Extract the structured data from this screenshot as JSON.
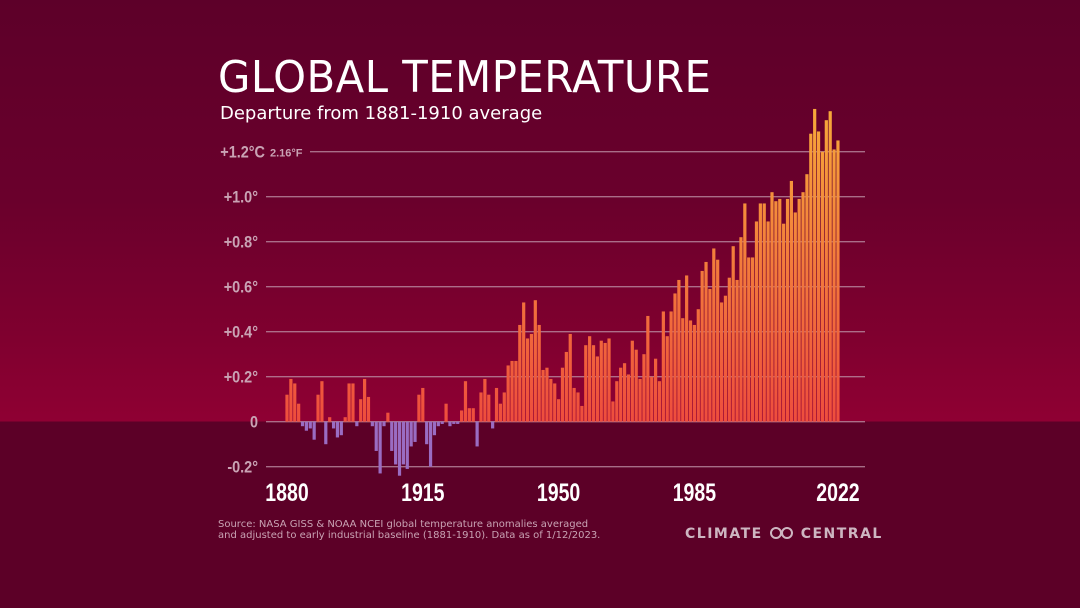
{
  "chart_data": {
    "type": "bar",
    "title": "GLOBAL TEMPERATURE",
    "subtitle": "Departure from 1881-1910 average",
    "unit_top_label": "+1.2°C",
    "unit_top_fahrenheit": "2.16°F",
    "ylim": [
      -0.2,
      1.4
    ],
    "grid": true,
    "y_ticks": [
      {
        "value": 1.2,
        "label": "+1.2°C"
      },
      {
        "value": 1.0,
        "label": "+1.0°"
      },
      {
        "value": 0.8,
        "label": "+0.8°"
      },
      {
        "value": 0.6,
        "label": "+0.6°"
      },
      {
        "value": 0.4,
        "label": "+0.4°"
      },
      {
        "value": 0.2,
        "label": "+0.2°"
      },
      {
        "value": 0,
        "label": "0"
      },
      {
        "value": -0.2,
        "label": "-0.2°"
      }
    ],
    "x_ticks": [
      "1880",
      "1915",
      "1950",
      "1985",
      "2022"
    ],
    "x_start": 1880,
    "x_end": 2022,
    "values": [
      0.12,
      0.19,
      0.17,
      0.08,
      -0.02,
      -0.04,
      -0.03,
      -0.08,
      0.12,
      0.18,
      -0.1,
      0.02,
      -0.03,
      -0.07,
      -0.06,
      0.02,
      0.17,
      0.17,
      -0.02,
      0.1,
      0.19,
      0.11,
      -0.02,
      -0.13,
      -0.23,
      -0.02,
      0.04,
      -0.13,
      -0.19,
      -0.24,
      -0.19,
      -0.21,
      -0.11,
      -0.09,
      0.12,
      0.15,
      -0.1,
      -0.2,
      -0.06,
      -0.02,
      -0.01,
      0.08,
      -0.02,
      -0.01,
      -0.01,
      0.05,
      0.18,
      0.06,
      0.06,
      -0.11,
      0.13,
      0.19,
      0.12,
      -0.03,
      0.15,
      0.08,
      0.13,
      0.25,
      0.27,
      0.27,
      0.43,
      0.53,
      0.37,
      0.39,
      0.54,
      0.43,
      0.23,
      0.24,
      0.19,
      0.17,
      0.1,
      0.24,
      0.31,
      0.39,
      0.15,
      0.13,
      0.07,
      0.34,
      0.38,
      0.34,
      0.29,
      0.36,
      0.35,
      0.37,
      0.09,
      0.18,
      0.24,
      0.26,
      0.21,
      0.36,
      0.32,
      0.19,
      0.3,
      0.47,
      0.2,
      0.28,
      0.18,
      0.49,
      0.38,
      0.49,
      0.57,
      0.63,
      0.46,
      0.65,
      0.45,
      0.43,
      0.5,
      0.67,
      0.71,
      0.59,
      0.77,
      0.72,
      0.53,
      0.56,
      0.64,
      0.78,
      0.63,
      0.82,
      0.97,
      0.73,
      0.73,
      0.89,
      0.97,
      0.97,
      0.89,
      1.02,
      0.98,
      0.99,
      0.88,
      0.99,
      1.07,
      0.93,
      0.99,
      1.02,
      1.1,
      1.28,
      1.39,
      1.29,
      1.2,
      1.34,
      1.38,
      1.21,
      1.25
    ],
    "colors": {
      "positive_low": "#ee4d3d",
      "positive_high": "#f7aa3a",
      "negative": "#9a6cc2",
      "grid": "#b98aa0",
      "tick_label": "#c9a3b4"
    }
  },
  "footer": {
    "source_line1": "Source: NASA GISS & NOAA NCEI global temperature anomalies averaged",
    "source_line2": "and adjusted to early industrial baseline (1881-1910). Data as of 1/12/2023.",
    "logo_left": "CLIMATE",
    "logo_right": "CENTRAL"
  }
}
